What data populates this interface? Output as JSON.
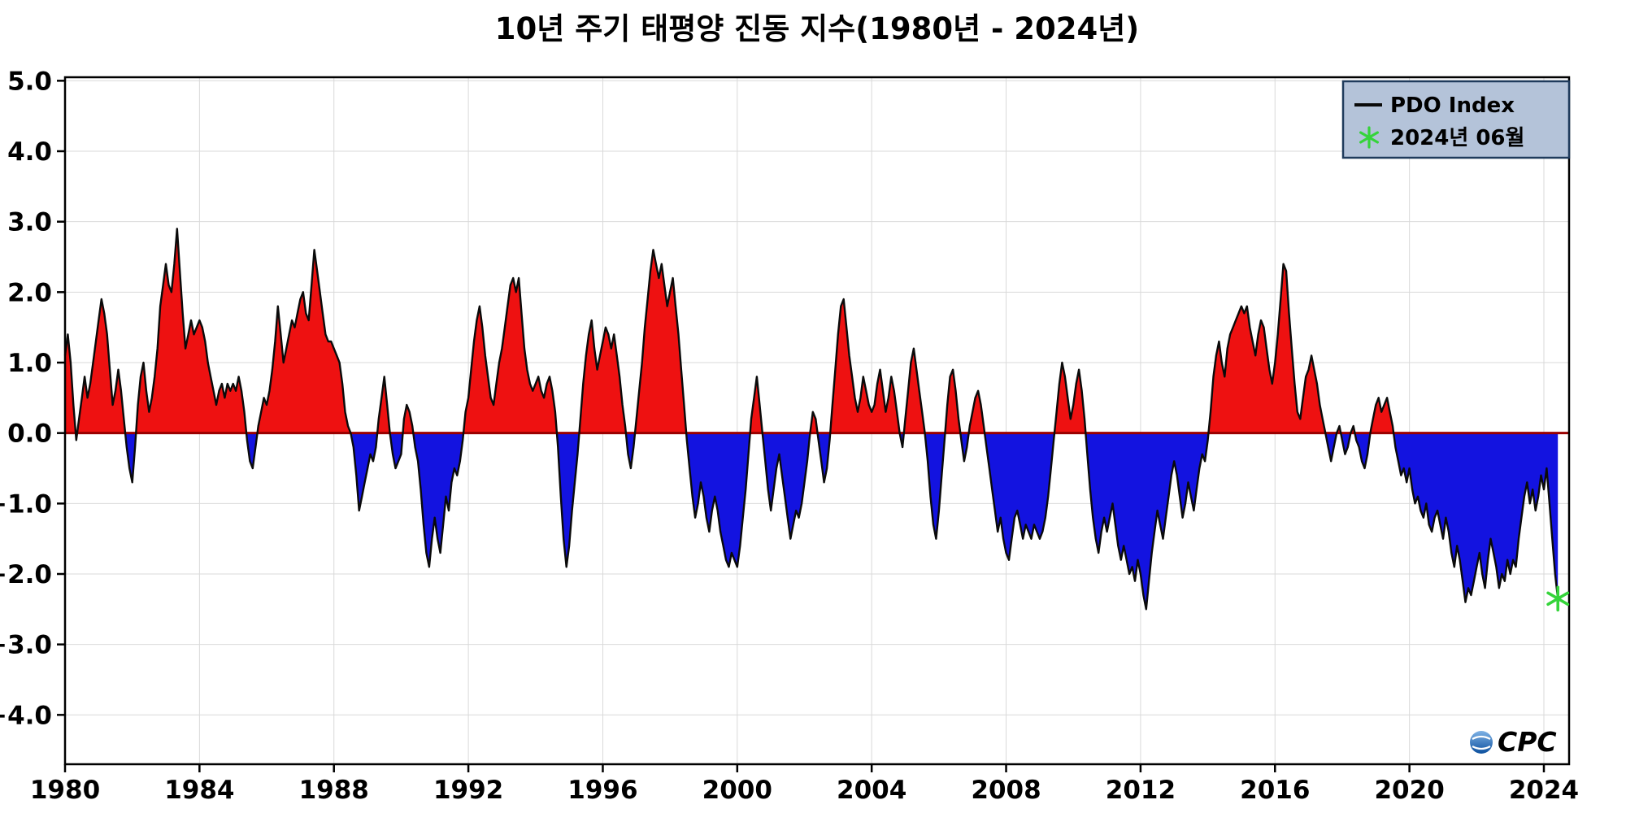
{
  "title": "10년 주기 태평양 진동 지수(1980년 - 2024년)",
  "legend": {
    "line_label": "PDO Index",
    "marker_label": "2024년 06월"
  },
  "watermark": "CPC",
  "colors": {
    "positive_fill": "#ee1111",
    "negative_fill": "#1313e0",
    "line": "#0a0a0a",
    "zero_line": "#990000",
    "marker": "#35d43a",
    "legend_bg": "#b4c3d9",
    "legend_border": "#1f3b5c",
    "grid": "#d9d9d9",
    "logo_blue": "#1160b0"
  },
  "chart_data": {
    "type": "area-line",
    "title": "10년 주기 태평양 진동 지수(1980년 - 2024년)",
    "series_name": "PDO Index",
    "x_unit": "monthly",
    "xlim": [
      1980,
      2024.75
    ],
    "ylim": [
      -4.7,
      5.05
    ],
    "x_ticks": [
      1980,
      1984,
      1988,
      1992,
      1996,
      2000,
      2004,
      2008,
      2012,
      2016,
      2020,
      2024
    ],
    "y_ticks": [
      5,
      4,
      3,
      2,
      1,
      0,
      -1,
      -2,
      -3,
      -4
    ],
    "y_tick_labels": [
      "5.0",
      "4.0",
      "3.0",
      "2.0",
      "1.0",
      "0.0",
      "−1.0",
      "−2.0",
      "−3.0",
      "−4.0"
    ],
    "grid": true,
    "legend_position": "top-right",
    "highlight_point": {
      "label": "2024년 06월",
      "x": 2024.4167,
      "value": -2.35
    },
    "monthly_values_by_year": {
      "1980": [
        1.1,
        1.4,
        1.0,
        0.4,
        -0.1,
        0.2,
        0.5,
        0.8,
        0.5,
        0.7,
        1.0,
        1.3
      ],
      "1981": [
        1.6,
        1.9,
        1.7,
        1.4,
        0.9,
        0.4,
        0.6,
        0.9,
        0.6,
        0.2,
        -0.2,
        -0.5
      ],
      "1982": [
        -0.7,
        -0.2,
        0.4,
        0.8,
        1.0,
        0.6,
        0.3,
        0.5,
        0.8,
        1.2,
        1.8,
        2.1
      ],
      "1983": [
        2.4,
        2.1,
        2.0,
        2.4,
        2.9,
        2.3,
        1.7,
        1.2,
        1.4,
        1.6,
        1.4,
        1.5
      ],
      "1984": [
        1.6,
        1.5,
        1.3,
        1.0,
        0.8,
        0.6,
        0.4,
        0.6,
        0.7,
        0.5,
        0.7,
        0.6
      ],
      "1985": [
        0.7,
        0.6,
        0.8,
        0.6,
        0.3,
        -0.1,
        -0.4,
        -0.5,
        -0.2,
        0.1,
        0.3,
        0.5
      ],
      "1986": [
        0.4,
        0.6,
        0.9,
        1.3,
        1.8,
        1.4,
        1.0,
        1.2,
        1.4,
        1.6,
        1.5,
        1.7
      ],
      "1987": [
        1.9,
        2.0,
        1.7,
        1.6,
        2.1,
        2.6,
        2.3,
        2.0,
        1.7,
        1.4,
        1.3,
        1.3
      ],
      "1988": [
        1.2,
        1.1,
        1.0,
        0.7,
        0.3,
        0.1,
        0.0,
        -0.2,
        -0.6,
        -1.1,
        -0.9,
        -0.7
      ],
      "1989": [
        -0.5,
        -0.3,
        -0.4,
        -0.2,
        0.2,
        0.5,
        0.8,
        0.4,
        0.0,
        -0.3,
        -0.5,
        -0.4
      ],
      "1990": [
        -0.3,
        0.2,
        0.4,
        0.3,
        0.1,
        -0.2,
        -0.4,
        -0.8,
        -1.3,
        -1.7,
        -1.9,
        -1.5
      ],
      "1991": [
        -1.2,
        -1.5,
        -1.7,
        -1.3,
        -0.9,
        -1.1,
        -0.7,
        -0.5,
        -0.6,
        -0.4,
        -0.1,
        0.3
      ],
      "1992": [
        0.5,
        0.9,
        1.3,
        1.6,
        1.8,
        1.5,
        1.1,
        0.8,
        0.5,
        0.4,
        0.7,
        1.0
      ],
      "1993": [
        1.2,
        1.5,
        1.8,
        2.1,
        2.2,
        2.0,
        2.2,
        1.7,
        1.2,
        0.9,
        0.7,
        0.6
      ],
      "1994": [
        0.7,
        0.8,
        0.6,
        0.5,
        0.7,
        0.8,
        0.6,
        0.3,
        -0.2,
        -0.9,
        -1.5,
        -1.9
      ],
      "1995": [
        -1.6,
        -1.1,
        -0.7,
        -0.3,
        0.2,
        0.7,
        1.1,
        1.4,
        1.6,
        1.2,
        0.9,
        1.1
      ],
      "1996": [
        1.3,
        1.5,
        1.4,
        1.2,
        1.4,
        1.1,
        0.8,
        0.4,
        0.1,
        -0.3,
        -0.5,
        -0.2
      ],
      "1997": [
        0.2,
        0.6,
        1.0,
        1.5,
        1.9,
        2.3,
        2.6,
        2.4,
        2.2,
        2.4,
        2.1,
        1.8
      ],
      "1998": [
        2.0,
        2.2,
        1.8,
        1.4,
        0.9,
        0.4,
        -0.1,
        -0.5,
        -0.9,
        -1.2,
        -1.0,
        -0.7
      ],
      "1999": [
        -0.9,
        -1.2,
        -1.4,
        -1.1,
        -0.9,
        -1.1,
        -1.4,
        -1.6,
        -1.8,
        -1.9,
        -1.7,
        -1.8
      ],
      "2000": [
        -1.9,
        -1.6,
        -1.2,
        -0.8,
        -0.3,
        0.2,
        0.5,
        0.8,
        0.4,
        0.0,
        -0.4,
        -0.8
      ],
      "2001": [
        -1.1,
        -0.8,
        -0.5,
        -0.3,
        -0.6,
        -0.9,
        -1.2,
        -1.5,
        -1.3,
        -1.1,
        -1.2,
        -1.0
      ],
      "2002": [
        -0.7,
        -0.4,
        0.0,
        0.3,
        0.2,
        -0.1,
        -0.4,
        -0.7,
        -0.5,
        -0.1,
        0.4,
        0.9
      ],
      "2003": [
        1.4,
        1.8,
        1.9,
        1.5,
        1.1,
        0.8,
        0.5,
        0.3,
        0.5,
        0.8,
        0.6,
        0.4
      ],
      "2004": [
        0.3,
        0.4,
        0.7,
        0.9,
        0.6,
        0.3,
        0.5,
        0.8,
        0.6,
        0.3,
        0.0,
        -0.2
      ],
      "2005": [
        0.2,
        0.6,
        1.0,
        1.2,
        0.9,
        0.6,
        0.3,
        0.0,
        -0.4,
        -0.9,
        -1.3,
        -1.5
      ],
      "2006": [
        -1.1,
        -0.6,
        -0.1,
        0.4,
        0.8,
        0.9,
        0.6,
        0.2,
        -0.1,
        -0.4,
        -0.2,
        0.1
      ],
      "2007": [
        0.3,
        0.5,
        0.6,
        0.4,
        0.1,
        -0.2,
        -0.5,
        -0.8,
        -1.1,
        -1.4,
        -1.2,
        -1.5
      ],
      "2008": [
        -1.7,
        -1.8,
        -1.5,
        -1.2,
        -1.1,
        -1.3,
        -1.5,
        -1.3,
        -1.4,
        -1.5,
        -1.3,
        -1.4
      ],
      "2009": [
        -1.5,
        -1.4,
        -1.2,
        -0.9,
        -0.5,
        -0.1,
        0.3,
        0.7,
        1.0,
        0.8,
        0.5,
        0.2
      ],
      "2010": [
        0.4,
        0.7,
        0.9,
        0.6,
        0.2,
        -0.3,
        -0.8,
        -1.2,
        -1.5,
        -1.7,
        -1.4,
        -1.2
      ],
      "2011": [
        -1.4,
        -1.2,
        -1.0,
        -1.3,
        -1.6,
        -1.8,
        -1.6,
        -1.8,
        -2.0,
        -1.9,
        -2.1,
        -1.8
      ],
      "2012": [
        -2.0,
        -2.3,
        -2.5,
        -2.1,
        -1.7,
        -1.4,
        -1.1,
        -1.3,
        -1.5,
        -1.2,
        -0.9,
        -0.6
      ],
      "2013": [
        -0.4,
        -0.6,
        -0.9,
        -1.2,
        -1.0,
        -0.7,
        -0.9,
        -1.1,
        -0.8,
        -0.5,
        -0.3,
        -0.4
      ],
      "2014": [
        -0.1,
        0.3,
        0.8,
        1.1,
        1.3,
        1.0,
        0.8,
        1.2,
        1.4,
        1.5,
        1.6,
        1.7
      ],
      "2015": [
        1.8,
        1.7,
        1.8,
        1.5,
        1.3,
        1.1,
        1.4,
        1.6,
        1.5,
        1.2,
        0.9,
        0.7
      ],
      "2016": [
        1.0,
        1.4,
        1.9,
        2.4,
        2.3,
        1.7,
        1.2,
        0.7,
        0.3,
        0.2,
        0.5,
        0.8
      ],
      "2017": [
        0.9,
        1.1,
        0.9,
        0.7,
        0.4,
        0.2,
        0.0,
        -0.2,
        -0.4,
        -0.2,
        0.0,
        0.1
      ],
      "2018": [
        -0.1,
        -0.3,
        -0.2,
        0.0,
        0.1,
        -0.1,
        -0.2,
        -0.4,
        -0.5,
        -0.3,
        0.0,
        0.2
      ],
      "2019": [
        0.4,
        0.5,
        0.3,
        0.4,
        0.5,
        0.3,
        0.1,
        -0.2,
        -0.4,
        -0.6,
        -0.5,
        -0.7
      ],
      "2020": [
        -0.5,
        -0.8,
        -1.0,
        -0.9,
        -1.1,
        -1.2,
        -1.0,
        -1.3,
        -1.4,
        -1.2,
        -1.1,
        -1.3
      ],
      "2021": [
        -1.5,
        -1.2,
        -1.4,
        -1.7,
        -1.9,
        -1.6,
        -1.8,
        -2.1,
        -2.4,
        -2.2,
        -2.3,
        -2.1
      ],
      "2022": [
        -1.9,
        -1.7,
        -2.0,
        -2.2,
        -1.8,
        -1.5,
        -1.7,
        -1.9,
        -2.2,
        -2.0,
        -2.1,
        -1.8
      ],
      "2023": [
        -2.0,
        -1.8,
        -1.9,
        -1.5,
        -1.2,
        -0.9,
        -0.7,
        -1.0,
        -0.8,
        -1.1,
        -0.9,
        -0.6
      ],
      "2024": [
        -0.8,
        -0.5,
        -1.0,
        -1.5,
        -2.0,
        -2.35
      ]
    }
  }
}
